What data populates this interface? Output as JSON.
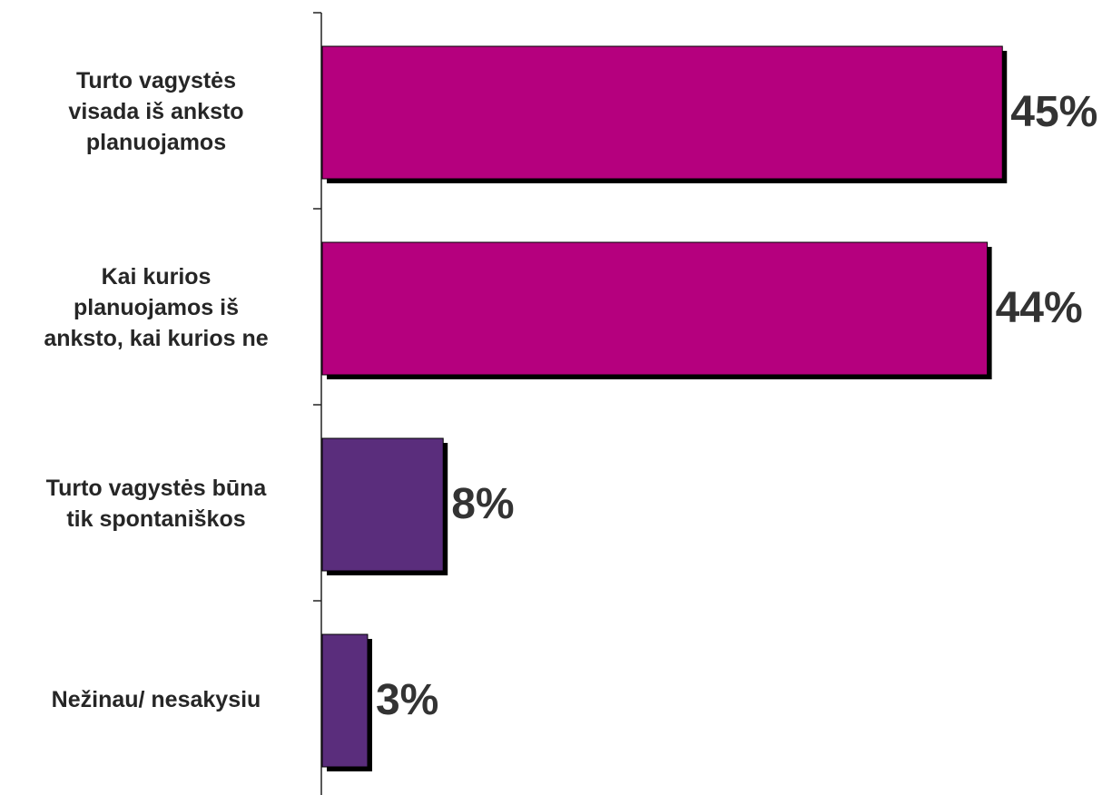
{
  "chart_data": {
    "type": "bar",
    "orientation": "horizontal",
    "categories": [
      [
        "Turto vagystės",
        "visada iš anksto",
        "planuojamos"
      ],
      [
        "Kai kurios",
        "planuojamos iš",
        "anksto, kai kurios ne"
      ],
      [
        "Turto vagystės būna",
        "tik spontaniškos"
      ],
      [
        "Nežinau/ nesakysiu"
      ]
    ],
    "values": [
      45,
      44,
      8,
      3
    ],
    "value_labels": [
      "45%",
      "44%",
      "8%",
      "3%"
    ],
    "colors": [
      "#b5007e",
      "#b5007e",
      "#5a2d7c",
      "#5a2d7c"
    ],
    "title": "",
    "xlabel": "",
    "ylabel": "",
    "xlim": [
      0,
      50
    ],
    "grid": false,
    "legend": "none"
  }
}
